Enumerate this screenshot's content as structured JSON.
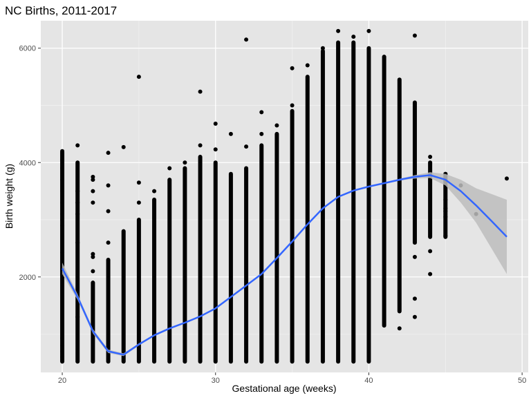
{
  "chart_data": {
    "type": "scatter",
    "title": "NC Births, 2011-2017",
    "xlabel": "Gestational age (weeks)",
    "ylabel": "Birth weight (g)",
    "xlim": [
      18.6,
      50.4
    ],
    "ylim": [
      330,
      6480
    ],
    "xticks": [
      20,
      30,
      40,
      50
    ],
    "yticks": [
      2000,
      4000,
      6000
    ],
    "x_tick_labels": [
      "20",
      "30",
      "40",
      "50"
    ],
    "y_tick_labels": [
      "2000",
      "4000",
      "6000"
    ],
    "grid": true,
    "background": "#e5e5e5",
    "point_color": "#000000",
    "smooth_color": "#3366ff",
    "band_color": "#bdbdbd",
    "columns": [
      {
        "x": 20,
        "min": 520,
        "max": 4180,
        "outliers": [
          600,
          700,
          800,
          930,
          2050,
          2100,
          2430,
          2900,
          3000,
          3100,
          3300,
          3500,
          3700,
          3900,
          4050,
          4200
        ]
      },
      {
        "x": 21,
        "min": 520,
        "max": 4000,
        "outliers": [
          1300,
          2600,
          3100,
          3300,
          3500,
          4300
        ]
      },
      {
        "x": 22,
        "min": 520,
        "max": 1900,
        "outliers": [
          2100,
          2350,
          2400,
          3300,
          3500,
          3700,
          3750
        ]
      },
      {
        "x": 23,
        "min": 520,
        "max": 2300,
        "outliers": [
          2600,
          3150,
          3600,
          4170
        ]
      },
      {
        "x": 24,
        "min": 520,
        "max": 2800,
        "outliers": [
          4270
        ]
      },
      {
        "x": 25,
        "min": 520,
        "max": 3000,
        "outliers": [
          3300,
          3650,
          5500
        ]
      },
      {
        "x": 26,
        "min": 520,
        "max": 3350,
        "outliers": [
          3500
        ]
      },
      {
        "x": 27,
        "min": 520,
        "max": 3700,
        "outliers": [
          3900
        ]
      },
      {
        "x": 28,
        "min": 520,
        "max": 3900,
        "outliers": [
          4000
        ]
      },
      {
        "x": 29,
        "min": 520,
        "max": 4100,
        "outliers": [
          4300,
          5240
        ]
      },
      {
        "x": 30,
        "min": 520,
        "max": 4000,
        "outliers": [
          4230,
          4680
        ]
      },
      {
        "x": 31,
        "min": 520,
        "max": 3800,
        "outliers": [
          4500
        ]
      },
      {
        "x": 32,
        "min": 520,
        "max": 3900,
        "outliers": [
          4280,
          6150
        ]
      },
      {
        "x": 33,
        "min": 520,
        "max": 4300,
        "outliers": [
          4500,
          4880
        ]
      },
      {
        "x": 34,
        "min": 520,
        "max": 4500,
        "outliers": [
          4650
        ]
      },
      {
        "x": 35,
        "min": 520,
        "max": 4900,
        "outliers": [
          5000,
          5650
        ]
      },
      {
        "x": 36,
        "min": 520,
        "max": 5500,
        "outliers": [
          5700
        ]
      },
      {
        "x": 37,
        "min": 520,
        "max": 5950,
        "outliers": [
          6000
        ]
      },
      {
        "x": 38,
        "min": 520,
        "max": 6100,
        "outliers": [
          6300
        ]
      },
      {
        "x": 39,
        "min": 520,
        "max": 6100,
        "outliers": [
          6200
        ]
      },
      {
        "x": 40,
        "min": 520,
        "max": 6000,
        "outliers": [
          6300
        ]
      },
      {
        "x": 41,
        "min": 1150,
        "max": 5850,
        "outliers": []
      },
      {
        "x": 42,
        "min": 1400,
        "max": 5450,
        "outliers": [
          1100
        ]
      },
      {
        "x": 43,
        "min": 2600,
        "max": 5050,
        "outliers": [
          1300,
          1620,
          2350,
          6220
        ]
      },
      {
        "x": 44,
        "min": 2700,
        "max": 4000,
        "outliers": [
          2050,
          2450,
          4100
        ]
      },
      {
        "x": 45,
        "min": 2700,
        "max": 3800,
        "outliers": [
          2720,
          3050,
          3150,
          3200,
          3350,
          3800
        ]
      },
      {
        "x": 46,
        "min": 3600,
        "max": 3600,
        "outliers": [
          3600
        ]
      },
      {
        "x": 47,
        "min": 3100,
        "max": 3100,
        "outliers": [
          3100
        ]
      },
      {
        "x": 49,
        "min": 3720,
        "max": 3720,
        "outliers": [
          3720
        ]
      }
    ],
    "smooth_line": [
      {
        "x": 20,
        "y": 2150
      },
      {
        "x": 21,
        "y": 1650
      },
      {
        "x": 22,
        "y": 1050
      },
      {
        "x": 23,
        "y": 700
      },
      {
        "x": 24,
        "y": 640
      },
      {
        "x": 25,
        "y": 820
      },
      {
        "x": 26,
        "y": 980
      },
      {
        "x": 27,
        "y": 1100
      },
      {
        "x": 28,
        "y": 1200
      },
      {
        "x": 29,
        "y": 1310
      },
      {
        "x": 30,
        "y": 1450
      },
      {
        "x": 31,
        "y": 1650
      },
      {
        "x": 32,
        "y": 1850
      },
      {
        "x": 33,
        "y": 2050
      },
      {
        "x": 34,
        "y": 2330
      },
      {
        "x": 35,
        "y": 2620
      },
      {
        "x": 36,
        "y": 2920
      },
      {
        "x": 37,
        "y": 3200
      },
      {
        "x": 38,
        "y": 3400
      },
      {
        "x": 39,
        "y": 3510
      },
      {
        "x": 40,
        "y": 3580
      },
      {
        "x": 41,
        "y": 3640
      },
      {
        "x": 42,
        "y": 3700
      },
      {
        "x": 43,
        "y": 3750
      },
      {
        "x": 44,
        "y": 3780
      },
      {
        "x": 45,
        "y": 3700
      },
      {
        "x": 46,
        "y": 3500
      },
      {
        "x": 47,
        "y": 3250
      },
      {
        "x": 48,
        "y": 2980
      },
      {
        "x": 49,
        "y": 2700
      }
    ],
    "smooth_band": [
      {
        "x": 20,
        "lo": 2050,
        "hi": 2250
      },
      {
        "x": 21,
        "lo": 1600,
        "hi": 1700
      },
      {
        "x": 22,
        "lo": 1010,
        "hi": 1090
      },
      {
        "x": 23,
        "lo": 670,
        "hi": 730
      },
      {
        "x": 24,
        "lo": 615,
        "hi": 665
      },
      {
        "x": 25,
        "lo": 800,
        "hi": 840
      },
      {
        "x": 26,
        "lo": 965,
        "hi": 995
      },
      {
        "x": 27,
        "lo": 1090,
        "hi": 1110
      },
      {
        "x": 28,
        "lo": 1190,
        "hi": 1210
      },
      {
        "x": 29,
        "lo": 1300,
        "hi": 1320
      },
      {
        "x": 30,
        "lo": 1440,
        "hi": 1460
      },
      {
        "x": 31,
        "lo": 1640,
        "hi": 1660
      },
      {
        "x": 32,
        "lo": 1840,
        "hi": 1860
      },
      {
        "x": 33,
        "lo": 2040,
        "hi": 2060
      },
      {
        "x": 34,
        "lo": 2320,
        "hi": 2340
      },
      {
        "x": 35,
        "lo": 2610,
        "hi": 2630
      },
      {
        "x": 36,
        "lo": 2910,
        "hi": 2930
      },
      {
        "x": 37,
        "lo": 3190,
        "hi": 3210
      },
      {
        "x": 38,
        "lo": 3390,
        "hi": 3410
      },
      {
        "x": 39,
        "lo": 3500,
        "hi": 3520
      },
      {
        "x": 40,
        "lo": 3570,
        "hi": 3590
      },
      {
        "x": 41,
        "lo": 3630,
        "hi": 3650
      },
      {
        "x": 42,
        "lo": 3685,
        "hi": 3715
      },
      {
        "x": 43,
        "lo": 3720,
        "hi": 3780
      },
      {
        "x": 44,
        "lo": 3730,
        "hi": 3830
      },
      {
        "x": 45,
        "lo": 3600,
        "hi": 3800
      },
      {
        "x": 46,
        "lo": 3300,
        "hi": 3700
      },
      {
        "x": 47,
        "lo": 2950,
        "hi": 3550
      },
      {
        "x": 48,
        "lo": 2500,
        "hi": 3450
      },
      {
        "x": 49,
        "lo": 2050,
        "hi": 3350
      }
    ]
  }
}
